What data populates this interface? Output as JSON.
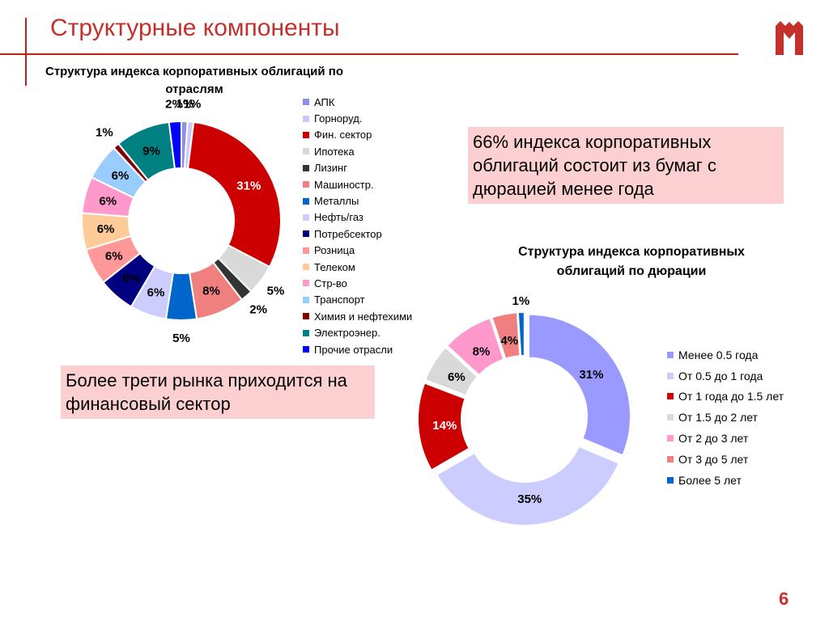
{
  "page": {
    "title": "Структурные компоненты",
    "page_number": "6",
    "brand_color": "#c4312c"
  },
  "callouts": {
    "top_right": "66% индекса корпоративных облигаций состоит из бумаг с дюрацией менее года",
    "bottom_left": "Более трети рынка приходится на финансовый сектор"
  },
  "chart_data": [
    {
      "type": "pie",
      "style": "donut",
      "title": "Структура индекса корпоративных облигаций по отраслям",
      "legend_position": "right",
      "categories": [
        "АПК",
        "Горноруд.",
        "Фин. сектор",
        "Ипотека",
        "Лизинг",
        "Машиностр.",
        "Металлы",
        "Нефть/газ",
        "Потребсектор",
        "Розница",
        "Телеком",
        "Стр-во",
        "Транспорт",
        "Химия и нефтехими",
        "Электроэнер.",
        "Прочие отрасли"
      ],
      "values": [
        1,
        1,
        31,
        5,
        2,
        8,
        5,
        6,
        6,
        6,
        6,
        6,
        6,
        1,
        9,
        2
      ],
      "labels": [
        "1%",
        "1%",
        "31%",
        "5%",
        "2%",
        "8%",
        "5%",
        "6%",
        "6%",
        "6%",
        "6%",
        "6%",
        "6%",
        "1%",
        "9%",
        "2%"
      ],
      "colors": [
        "#8f8fe6",
        "#cacaf5",
        "#cc0000",
        "#d9d9d9",
        "#333333",
        "#f08080",
        "#0066cc",
        "#ccccff",
        "#000080",
        "#ff9999",
        "#ffcc99",
        "#ff99cc",
        "#99ccff",
        "#800000",
        "#008080",
        "#0000ff"
      ]
    },
    {
      "type": "pie",
      "style": "donut",
      "title": "Структура индекса корпоративных облигаций по дюрации",
      "legend_position": "right",
      "categories": [
        "Менее 0.5 года",
        "От 0.5 до 1 года",
        "От 1 года до 1.5 лет",
        "От 1.5 до 2 лет",
        "От 2 до 3 лет",
        "От 3 до 5 лет",
        "Более 5 лет"
      ],
      "values": [
        31,
        35,
        14,
        6,
        8,
        4,
        1
      ],
      "labels": [
        "31%",
        "35%",
        "14%",
        "6%",
        "8%",
        "4%",
        "1%"
      ],
      "exploded": true,
      "colors": [
        "#9999ff",
        "#ccccff",
        "#cc0000",
        "#d9d9d9",
        "#ff99cc",
        "#f08080",
        "#0066cc"
      ]
    }
  ]
}
